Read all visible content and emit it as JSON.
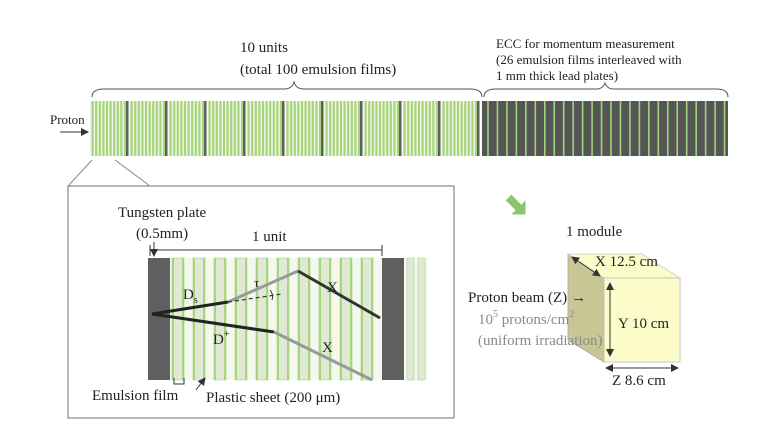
{
  "top": {
    "units_title": "10 units",
    "units_subtitle": "(total 100 emulsion films)",
    "ecc_line1": "ECC for momentum measurement",
    "ecc_line2": "(26 emulsion films interleaved with",
    "ecc_line3": "1 mm thick lead plates)",
    "proton_label": "Proton",
    "unit_count": 10,
    "films_per_unit": 10,
    "ecc_plate_count": 26
  },
  "detail": {
    "tungsten_line1": "Tungsten plate",
    "tungsten_line2": "(0.5mm)",
    "unit_label": "1 unit",
    "tau_label": "τ",
    "ds_label": "D",
    "ds_sub": "s",
    "dplus_label": "D",
    "dplus_sup": "+",
    "x_label_1": "X",
    "x_label_2": "X",
    "emulsion_label": "Emulsion film",
    "plastic_label": "Plastic sheet (200 μm)"
  },
  "module": {
    "title": "1 module",
    "x_dim": "X 12.5 cm",
    "y_dim": "Y 10 cm",
    "z_dim": "Z 8.6 cm",
    "beam_label": "Proton beam (Z)",
    "beam_arrow": "→",
    "flux_base": "10",
    "flux_exp": "5",
    "flux_rest": " protons/cm",
    "flux_unit_exp": "2",
    "irradiation": "(uniform irradiation)"
  },
  "colors": {
    "emulsion_green": "#a6d57a",
    "tungsten_dark": "#5f5f5f",
    "lead_dark": "#555555",
    "ecc_film": "#9fd47a",
    "module_face": "#fcfccb",
    "module_side": "#c8c695",
    "arrow_green": "#8cc66a"
  }
}
